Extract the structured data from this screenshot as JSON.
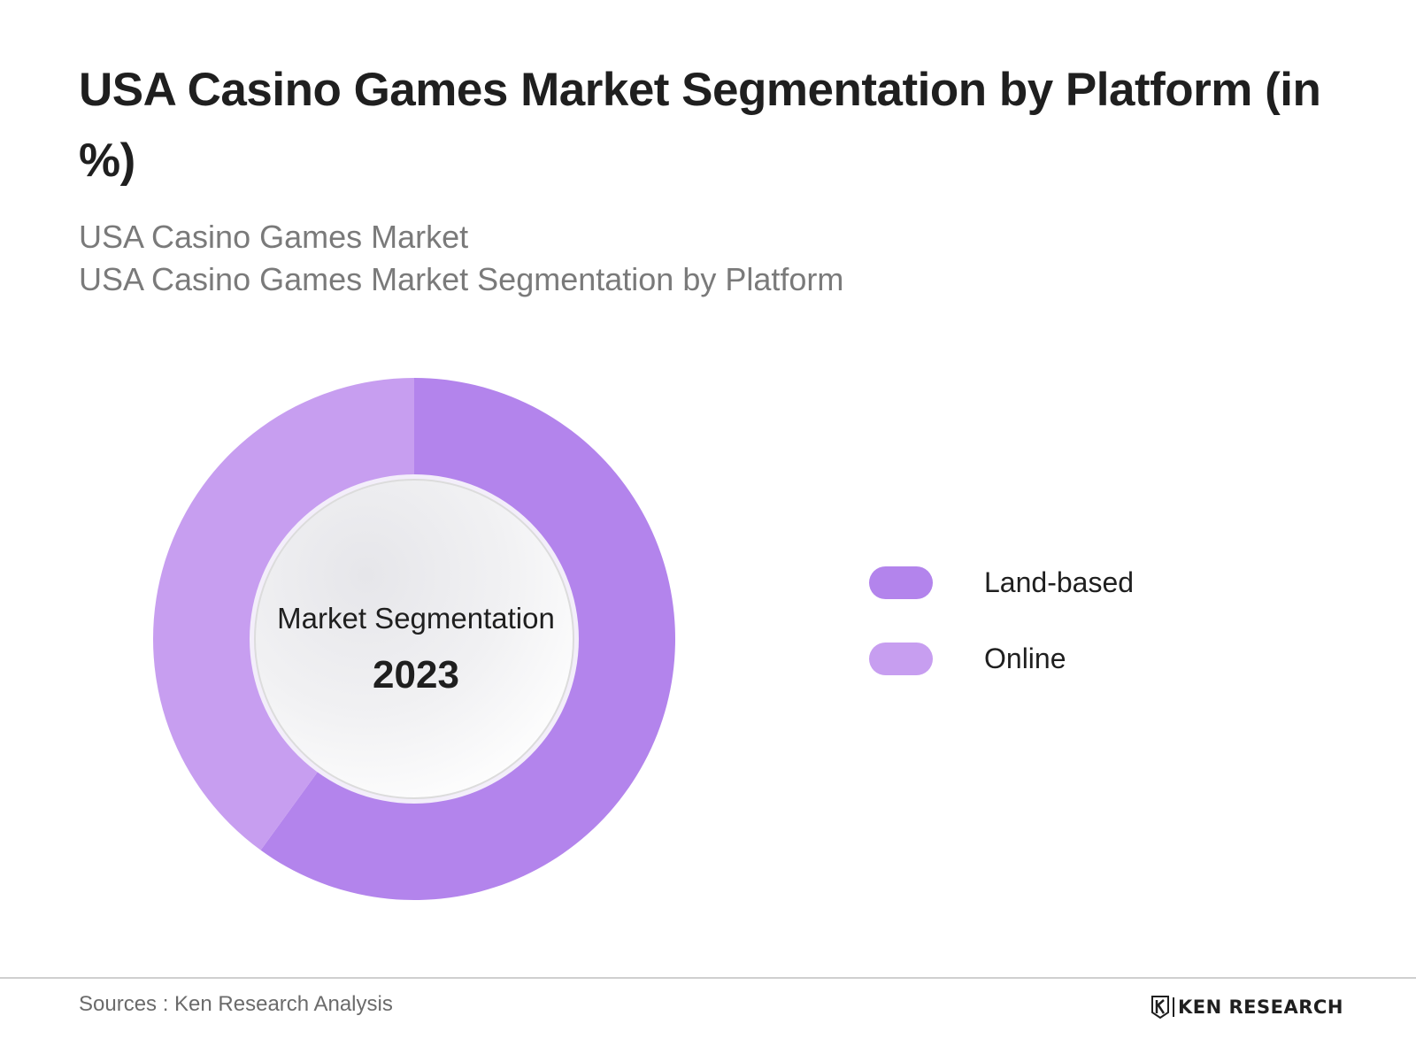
{
  "header": {
    "title": "USA Casino Games Market Segmentation by Platform (in %)",
    "subtitle_line1": "USA Casino Games Market",
    "subtitle_line2": "USA Casino Games Market Segmentation by Platform"
  },
  "center": {
    "label": "Market Segmentation",
    "year": "2023"
  },
  "chart_data": {
    "type": "pie",
    "variant": "donut",
    "categories": [
      "Land-based",
      "Online"
    ],
    "values": [
      60,
      40
    ],
    "colors": [
      "#b384ec",
      "#c79ef0"
    ],
    "legend_position": "right"
  },
  "footer": {
    "source": "Sources : Ken Research Analysis",
    "logo_text": "KEN RESEARCH"
  }
}
